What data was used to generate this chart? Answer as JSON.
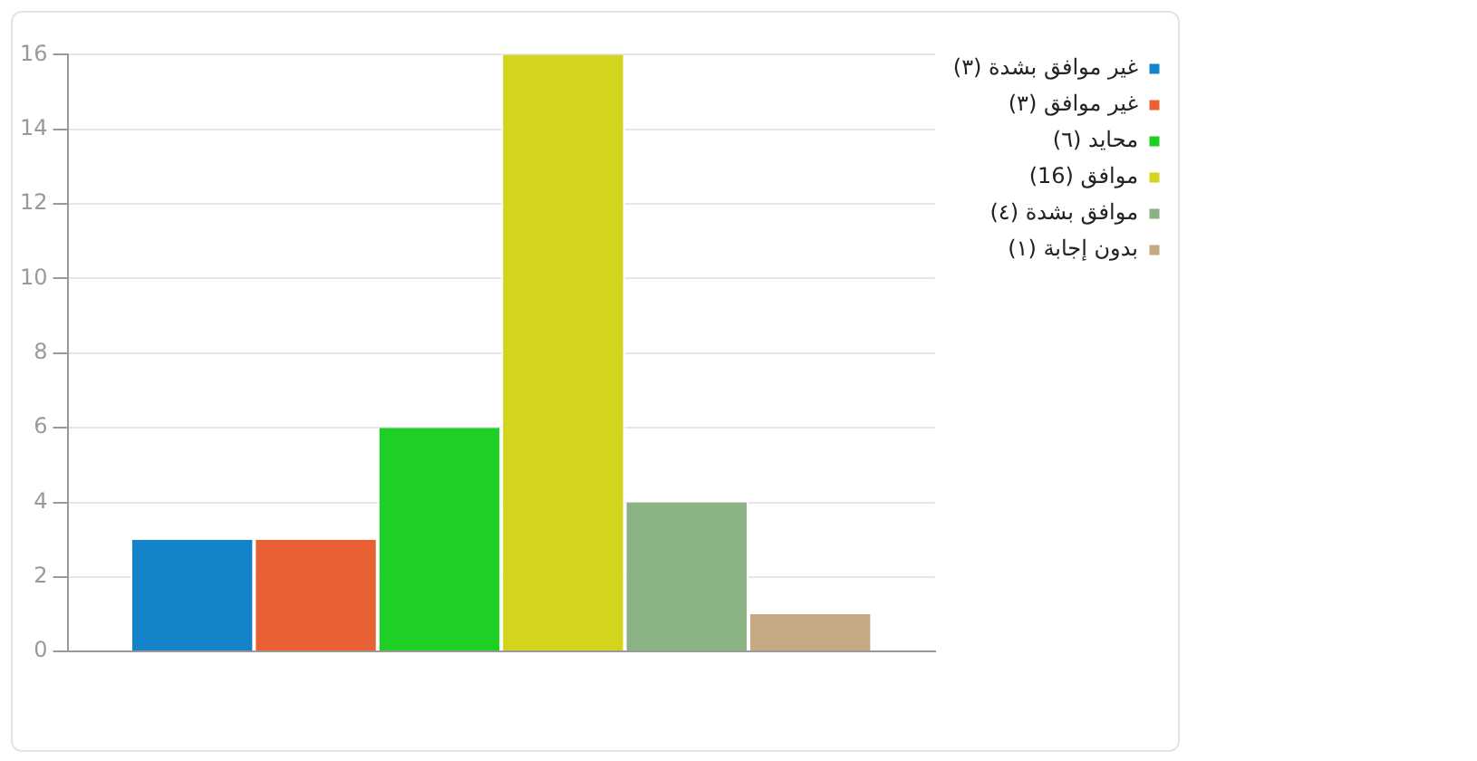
{
  "chart_data": {
    "type": "bar",
    "categories": [
      null
    ],
    "series": [
      {
        "name": "غير موافق بشدة (٣)",
        "color": "#1483c9",
        "values": [
          3
        ]
      },
      {
        "name": "غير موافق (٣)",
        "color": "#e86033",
        "values": [
          3
        ]
      },
      {
        "name": "محايد (٦)",
        "color": "#20cf25",
        "values": [
          6
        ]
      },
      {
        "name": "موافق (16)",
        "color": "#d3d41e",
        "values": [
          16
        ]
      },
      {
        "name": "موافق بشدة (٤)",
        "color": "#8ab283",
        "values": [
          4
        ]
      },
      {
        "name": "بدون إجابة (١)",
        "color": "#c6a882",
        "values": [
          1
        ]
      }
    ],
    "ylim": [
      0,
      16
    ],
    "yticks": [
      0,
      2,
      4,
      6,
      8,
      10,
      12,
      14,
      16
    ],
    "grid": "y",
    "legend": "top right"
  }
}
